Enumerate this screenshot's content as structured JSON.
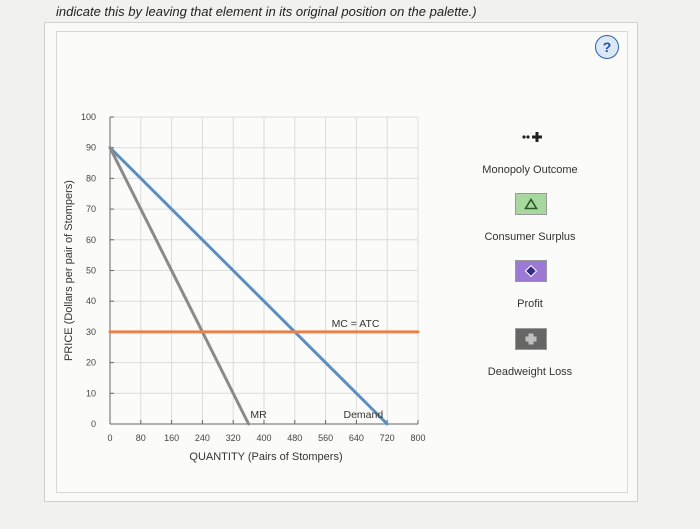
{
  "instruction": "indicate this by leaving that element in its original position on the palette.)",
  "help_label": "?",
  "palette": {
    "items": [
      {
        "label": "Monopoly Outcome",
        "icon": "plus-marker-icon",
        "color": "#222222"
      },
      {
        "label": "Consumer Surplus",
        "icon": "triangle-icon",
        "color": "#a8d8a0"
      },
      {
        "label": "Profit",
        "icon": "diamond-icon",
        "color": "#9b79d4"
      },
      {
        "label": "Deadweight Loss",
        "icon": "plus-icon",
        "color": "#666666"
      }
    ]
  },
  "chart_data": {
    "type": "line",
    "xlabel": "QUANTITY (Pairs of Stompers)",
    "ylabel": "PRICE (Dollars per pair of Stompers)",
    "xlim": [
      0,
      800
    ],
    "ylim": [
      0,
      100
    ],
    "x_ticks": [
      0,
      80,
      160,
      240,
      320,
      400,
      480,
      560,
      640,
      720,
      800
    ],
    "y_ticks": [
      0,
      10,
      20,
      30,
      40,
      50,
      60,
      70,
      80,
      90,
      100
    ],
    "grid": true,
    "series": [
      {
        "name": "Demand",
        "color": "#5b8fc1",
        "points": [
          [
            0,
            90
          ],
          [
            720,
            0
          ]
        ]
      },
      {
        "name": "MR",
        "color": "#8a8a8a",
        "points": [
          [
            0,
            90
          ],
          [
            360,
            0
          ]
        ]
      },
      {
        "name": "MC = ATC",
        "color": "#e8824a",
        "points": [
          [
            0,
            30
          ],
          [
            800,
            30
          ]
        ]
      }
    ]
  }
}
